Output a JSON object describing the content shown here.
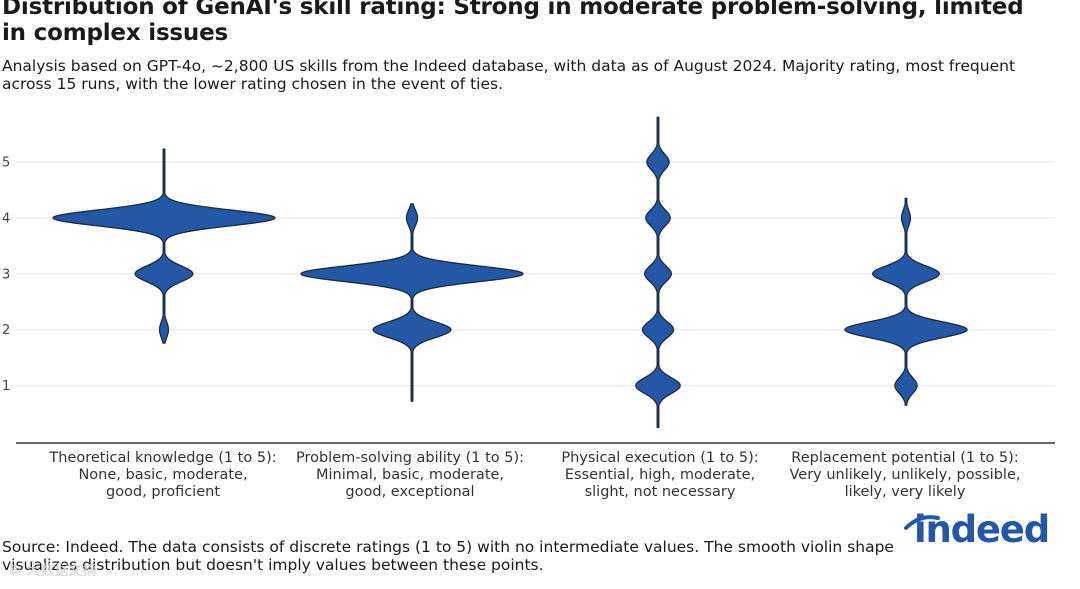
{
  "title": "Distribution of GenAI's skill rating: Strong in moderate problem-solving, limited in complex issues",
  "subtitle": "Analysis based on GPT-4o, ~2,800 US skills from the Indeed database, with data as of August 2024. Majority rating, most frequent across 15 runs, with the lower rating chosen in the event of ties.",
  "source": "Source: Indeed. The data consists of discrete ratings (1 to 5) with no intermediate values. The smooth violin shape visualizes distribution but doesn't imply values between these points.",
  "logo_text": "indeed",
  "watermark": "© 大数据文摘",
  "colors": {
    "violin": "#2557a7",
    "outline": "#1c2a3a",
    "grid": "#e6e6e6",
    "axis": "#333333"
  },
  "chart_data": {
    "type": "violin",
    "title": "Distribution of GenAI's skill rating: Strong in moderate problem-solving, limited in complex issues",
    "ylim": [
      0,
      5.8
    ],
    "yticks": [
      1,
      2,
      3,
      4,
      5
    ],
    "grid": true,
    "categories": [
      {
        "name": "Theoretical knowledge (1 to 5):",
        "scale": "None, basic, moderate, good, proficient",
        "scale_lines": [
          "None, basic, moderate,",
          "good, proficient"
        ]
      },
      {
        "name": "Problem-solving ability (1 to 5):",
        "scale": "Minimal, basic, moderate, good, exceptional",
        "scale_lines": [
          "Minimal, basic, moderate,",
          "good, exceptional"
        ]
      },
      {
        "name": "Physical execution (1 to 5):",
        "scale": "Essential, high, moderate, slight, not necessary",
        "scale_lines": [
          "Essential, high, moderate,",
          "slight, not necessary"
        ]
      },
      {
        "name": "Replacement potential (1 to 5):",
        "scale": "Very unlikely, unlikely, possible, likely, very likely",
        "scale_lines": [
          "Very unlikely, unlikely, possible,",
          "likely, very likely"
        ]
      }
    ],
    "series": [
      {
        "name": "Theoretical knowledge",
        "range": [
          1.76,
          5.23
        ],
        "density": {
          "1": 0.0,
          "2": 0.04,
          "3": 0.26,
          "4": 1.0,
          "5": 0.0
        }
      },
      {
        "name": "Problem-solving ability",
        "range": [
          0.72,
          4.25
        ],
        "density": {
          "1": 0.0,
          "2": 0.35,
          "3": 1.0,
          "4": 0.05,
          "5": 0.0
        }
      },
      {
        "name": "Physical execution",
        "range": [
          0.25,
          5.8
        ],
        "density": {
          "1": 0.2,
          "2": 0.14,
          "3": 0.12,
          "4": 0.11,
          "5": 0.1
        }
      },
      {
        "name": "Replacement potential",
        "range": [
          0.65,
          4.35
        ],
        "density": {
          "1": 0.1,
          "2": 0.55,
          "3": 0.3,
          "4": 0.04,
          "5": 0.0
        }
      }
    ]
  }
}
